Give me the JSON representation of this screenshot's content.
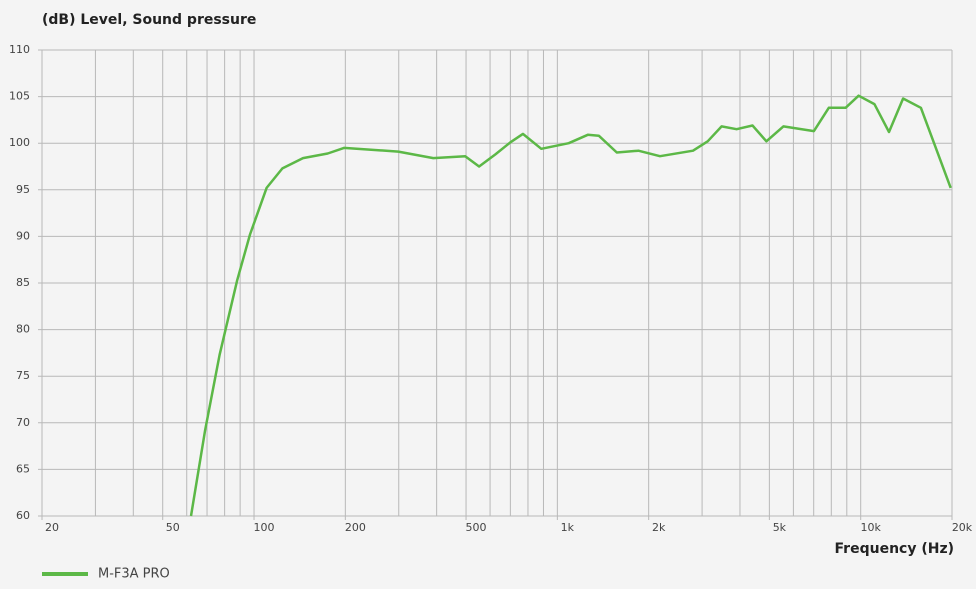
{
  "chart_data": {
    "type": "line",
    "title": "(dB) Level, Sound pressure",
    "x_label": "Frequency (Hz)",
    "x": [
      62,
      69,
      77,
      88,
      97,
      110,
      124,
      145,
      175,
      198,
      299,
      390,
      497,
      552,
      625,
      700,
      770,
      885,
      1090,
      1260,
      1370,
      1570,
      1850,
      2180,
      2800,
      3130,
      3480,
      3900,
      4400,
      4890,
      5560,
      7010,
      7850,
      8920,
      9840,
      11100,
      12400,
      13800,
      15800,
      19800
    ],
    "series": [
      {
        "name": "M-F3A PRO",
        "color": "#5cb847",
        "values": [
          60,
          69.2,
          77.3,
          85.3,
          90.2,
          95.2,
          97.3,
          98.4,
          98.9,
          99.5,
          99.1,
          98.4,
          98.6,
          97.5,
          98.8,
          100.1,
          101.0,
          99.4,
          100.0,
          100.9,
          100.8,
          99.0,
          99.2,
          98.6,
          99.2,
          100.2,
          101.8,
          101.5,
          101.9,
          100.2,
          101.8,
          101.3,
          103.8,
          103.8,
          105.1,
          104.2,
          101.2,
          104.8,
          103.8,
          95.2
        ]
      }
    ],
    "xscale": "log",
    "xlim": [
      20,
      20000
    ],
    "xticks": [
      20,
      50,
      100,
      200,
      500,
      {
        "value": 1000,
        "label": "1k"
      },
      {
        "value": 2000,
        "label": "2k"
      },
      {
        "value": 5000,
        "label": "5k"
      },
      {
        "value": 10000,
        "label": "10k"
      },
      {
        "value": 20000,
        "label": "20k"
      }
    ],
    "xminorticks": [
      30,
      40,
      60,
      70,
      80,
      90,
      300,
      400,
      600,
      700,
      800,
      900,
      3000,
      4000,
      6000,
      7000,
      8000,
      9000
    ],
    "ylim": [
      60,
      110
    ],
    "yticks": [
      60,
      65,
      70,
      75,
      80,
      85,
      90,
      95,
      100,
      105,
      110
    ],
    "grid": true,
    "legend": "bottom-left"
  }
}
